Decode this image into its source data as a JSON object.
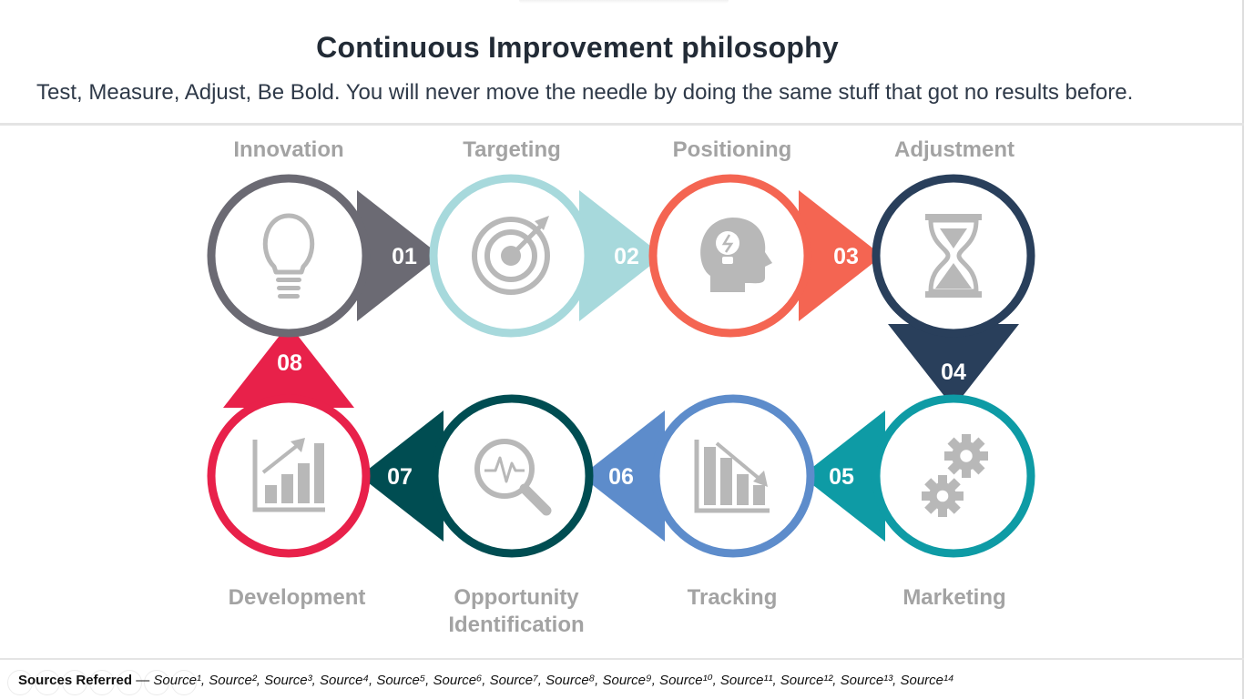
{
  "slide": {
    "title": "Continuous Improvement philosophy",
    "subtitle": "Test, Measure, Adjust, Be Bold. You will never move the needle by doing the same stuff that got no results before."
  },
  "steps": [
    {
      "num": "01",
      "label": "Innovation",
      "color": "#6b6a73",
      "icon": "lightbulb-icon"
    },
    {
      "num": "02",
      "label": "Targeting",
      "color": "#a7d9dc",
      "icon": "target-icon"
    },
    {
      "num": "03",
      "label": "Positioning",
      "color": "#f46552",
      "icon": "head-idea-icon"
    },
    {
      "num": "04",
      "label": "Adjustment",
      "color": "#293f5b",
      "icon": "hourglass-icon"
    },
    {
      "num": "05",
      "label": "Marketing",
      "color": "#0e9ba5",
      "icon": "gears-icon"
    },
    {
      "num": "06",
      "label": "Tracking",
      "color": "#5d8ccb",
      "icon": "declining-chart-icon"
    },
    {
      "num": "07",
      "label": "Opportunity Identification",
      "color": "#004d52",
      "icon": "magnifier-pulse-icon"
    },
    {
      "num": "08",
      "label": "Development",
      "color": "#e8214a",
      "icon": "growth-chart-icon"
    }
  ],
  "icon_color": "#b8b8b8",
  "sources": {
    "title": "Sources Referred",
    "separator": " — ",
    "list": "Source¹, Source², Source³, Source⁴, Source⁵, Source⁶, Source⁷, Source⁸, Source⁹, Source¹⁰, Source¹¹, Source¹², Source¹³, Source¹⁴"
  }
}
